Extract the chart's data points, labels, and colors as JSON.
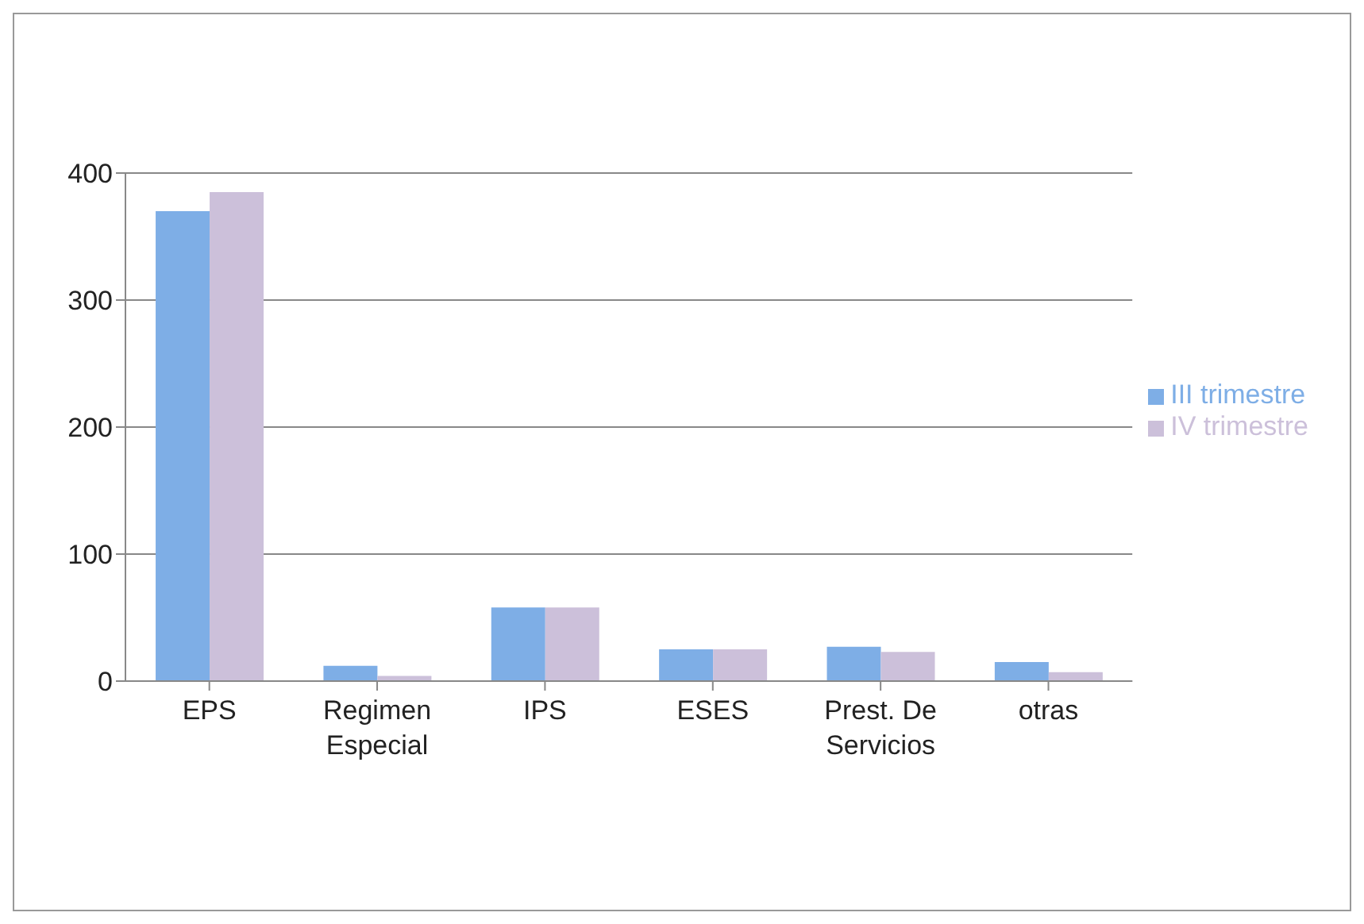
{
  "chart_data": {
    "type": "bar",
    "categories": [
      "EPS",
      "Regimen\nEspecial",
      "IPS",
      "ESES",
      "Prest. De\nServicios",
      "otras"
    ],
    "series": [
      {
        "name": "III trimestre",
        "color": "#7eaee6",
        "values": [
          370,
          12,
          58,
          25,
          27,
          15
        ]
      },
      {
        "name": "IV trimestre",
        "color": "#ccc0da",
        "values": [
          385,
          4,
          58,
          25,
          23,
          7
        ]
      }
    ],
    "ylim": [
      0,
      400
    ],
    "yticks": [
      0,
      100,
      200,
      300,
      400
    ],
    "grid": "y",
    "legend": "right"
  }
}
